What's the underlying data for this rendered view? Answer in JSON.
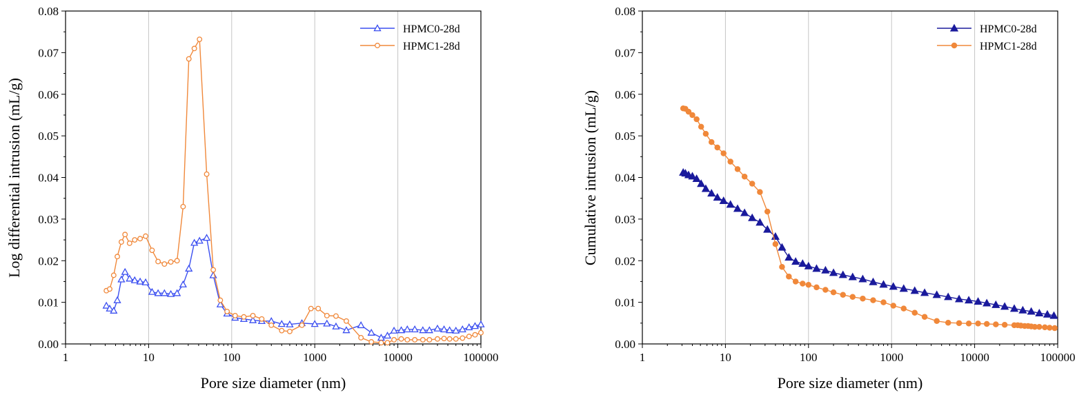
{
  "chart_data": [
    {
      "type": "line",
      "xscale": "log",
      "xlabel": "Pore size diameter (nm)",
      "ylabel": "Log differential intrusion (mL/g)",
      "xlim": [
        1,
        100000
      ],
      "ylim": [
        0,
        0.08
      ],
      "xticks": [
        "1",
        "10",
        "100",
        "1000",
        "10000",
        "100000"
      ],
      "yticks": [
        "0.00",
        "0.01",
        "0.02",
        "0.03",
        "0.04",
        "0.05",
        "0.06",
        "0.07",
        "0.08"
      ],
      "grid": "vertical",
      "legend_position": "top-right",
      "series": [
        {
          "name": "HPMC0-28d",
          "color": "#3a4ef0",
          "marker": "triangle-open",
          "x": [
            3.1,
            3.4,
            3.8,
            4.2,
            4.7,
            5.2,
            5.9,
            6.8,
            7.9,
            9.2,
            11,
            13,
            15.5,
            18.5,
            22,
            26,
            30.5,
            35.5,
            41,
            50,
            60,
            73,
            88,
            110,
            140,
            180,
            230,
            300,
            400,
            500,
            700,
            1000,
            1400,
            1800,
            2400,
            3600,
            4800,
            6300,
            7500,
            9000,
            11000,
            13000,
            16000,
            20000,
            24000,
            30000,
            36000,
            42000,
            50000,
            60000,
            72000,
            85000,
            100000
          ],
          "y": [
            0.0092,
            0.0085,
            0.008,
            0.0105,
            0.0155,
            0.0173,
            0.0157,
            0.0153,
            0.015,
            0.0148,
            0.0125,
            0.0122,
            0.0122,
            0.012,
            0.0122,
            0.0143,
            0.0181,
            0.0243,
            0.0248,
            0.0255,
            0.0165,
            0.0095,
            0.0073,
            0.0063,
            0.006,
            0.0057,
            0.0055,
            0.0055,
            0.0048,
            0.0047,
            0.005,
            0.0048,
            0.0049,
            0.0042,
            0.0033,
            0.0045,
            0.0027,
            0.0015,
            0.002,
            0.0032,
            0.0033,
            0.0035,
            0.0035,
            0.0033,
            0.0033,
            0.0037,
            0.0035,
            0.0033,
            0.0032,
            0.0035,
            0.004,
            0.0043,
            0.0047
          ]
        },
        {
          "name": "HPMC1-28d",
          "color": "#f0883a",
          "marker": "circle-open",
          "x": [
            3.1,
            3.4,
            3.8,
            4.2,
            4.7,
            5.2,
            5.9,
            6.8,
            7.9,
            9.2,
            11,
            13,
            15.5,
            18.5,
            22,
            26,
            30.5,
            35.5,
            41,
            50,
            60,
            73,
            88,
            110,
            140,
            180,
            230,
            300,
            400,
            500,
            700,
            900,
            1100,
            1400,
            1800,
            2400,
            3600,
            4800,
            6300,
            7500,
            9000,
            11000,
            13000,
            16000,
            20000,
            24000,
            30000,
            36000,
            42000,
            50000,
            60000,
            72000,
            85000,
            100000
          ],
          "y": [
            0.0128,
            0.0132,
            0.0165,
            0.021,
            0.0245,
            0.0263,
            0.0242,
            0.025,
            0.0253,
            0.0259,
            0.0225,
            0.0198,
            0.0192,
            0.0197,
            0.02,
            0.033,
            0.0685,
            0.071,
            0.0732,
            0.0408,
            0.0178,
            0.0105,
            0.0078,
            0.0068,
            0.0065,
            0.0068,
            0.006,
            0.0045,
            0.0032,
            0.003,
            0.0045,
            0.0085,
            0.0085,
            0.0068,
            0.0067,
            0.0055,
            0.0015,
            0.0005,
            0.0003,
            0.0003,
            0.001,
            0.0012,
            0.001,
            0.001,
            0.001,
            0.001,
            0.0012,
            0.0013,
            0.0012,
            0.0012,
            0.0014,
            0.0018,
            0.0022,
            0.0027
          ]
        }
      ]
    },
    {
      "type": "line",
      "xscale": "log",
      "xlabel": "Pore size diameter (nm)",
      "ylabel": "Cumulative intrusion (mL/g)",
      "xlim": [
        1,
        100000
      ],
      "ylim": [
        0,
        0.08
      ],
      "xticks": [
        "1",
        "10",
        "100",
        "1000",
        "10000",
        "100000"
      ],
      "yticks": [
        "0.00",
        "0.01",
        "0.02",
        "0.03",
        "0.04",
        "0.05",
        "0.06",
        "0.07",
        "0.08"
      ],
      "grid": "vertical",
      "legend_position": "top-right",
      "series": [
        {
          "name": "HPMC0-28d",
          "color": "#1a1a9c",
          "marker": "triangle-filled",
          "x": [
            3.1,
            3.3,
            3.6,
            4.0,
            4.5,
            5.1,
            5.8,
            6.8,
            8.0,
            9.5,
            11.5,
            14,
            17,
            21,
            26,
            32,
            40,
            48,
            58,
            70,
            85,
            100,
            125,
            160,
            200,
            260,
            340,
            450,
            600,
            800,
            1050,
            1400,
            1900,
            2500,
            3500,
            4800,
            6500,
            8500,
            11000,
            14000,
            18000,
            23000,
            30000,
            38000,
            48000,
            60000,
            75000,
            90000
          ],
          "y": [
            0.0412,
            0.041,
            0.0406,
            0.0403,
            0.0397,
            0.0385,
            0.0373,
            0.0362,
            0.0352,
            0.0344,
            0.0335,
            0.0325,
            0.0315,
            0.0303,
            0.0292,
            0.0275,
            0.0258,
            0.0232,
            0.0208,
            0.0198,
            0.0193,
            0.0187,
            0.0181,
            0.0177,
            0.0171,
            0.0166,
            0.0161,
            0.0156,
            0.0149,
            0.0143,
            0.0138,
            0.0133,
            0.0128,
            0.0123,
            0.0118,
            0.0113,
            0.0108,
            0.0105,
            0.0102,
            0.0098,
            0.0094,
            0.009,
            0.0085,
            0.0081,
            0.0078,
            0.0074,
            0.0071,
            0.0068
          ]
        },
        {
          "name": "HPMC1-28d",
          "color": "#f0883a",
          "marker": "circle-filled",
          "x": [
            3.1,
            3.3,
            3.6,
            4.0,
            4.5,
            5.1,
            5.8,
            6.8,
            8.0,
            9.5,
            11.5,
            14,
            17,
            21,
            26,
            32,
            40,
            48,
            58,
            70,
            85,
            100,
            125,
            160,
            200,
            260,
            340,
            450,
            600,
            800,
            1050,
            1400,
            1900,
            2500,
            3500,
            4800,
            6500,
            8500,
            11000,
            14000,
            18000,
            23000,
            30000,
            33000,
            36000,
            40000,
            44000,
            48000,
            53000,
            60000,
            70000,
            80000,
            92000
          ],
          "y": [
            0.0566,
            0.0565,
            0.0558,
            0.055,
            0.054,
            0.0522,
            0.0505,
            0.0485,
            0.0472,
            0.0458,
            0.0438,
            0.042,
            0.0402,
            0.0385,
            0.0365,
            0.0318,
            0.024,
            0.0185,
            0.0162,
            0.015,
            0.0145,
            0.0142,
            0.0136,
            0.013,
            0.0124,
            0.0118,
            0.0113,
            0.0109,
            0.0105,
            0.01,
            0.0092,
            0.0085,
            0.0075,
            0.0065,
            0.0055,
            0.0051,
            0.005,
            0.0049,
            0.0049,
            0.0048,
            0.0047,
            0.0046,
            0.0045,
            0.0045,
            0.0044,
            0.0043,
            0.0043,
            0.0042,
            0.0041,
            0.0041,
            0.004,
            0.0039,
            0.0038
          ]
        }
      ]
    }
  ]
}
